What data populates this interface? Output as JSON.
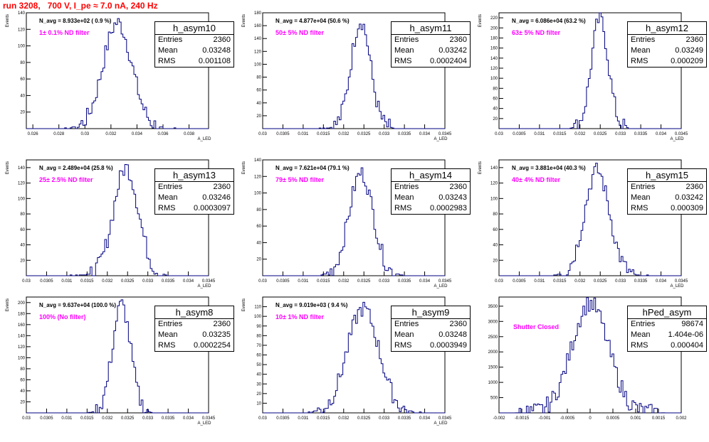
{
  "header": {
    "run_title": "run 3208,   700 V, I_pe ≈ 7.0 nA, 240 Hz"
  },
  "colors": {
    "line": "#000080",
    "title": "#ff0000",
    "annotation": "#ff00ff"
  },
  "chart_data": [
    {
      "type": "histogram",
      "name": "h_asym10",
      "entries": "2360",
      "mean": "0.03248",
      "rms": "0.001108",
      "navg": "N_avg = 8.933e+02 ( 0.9 %)",
      "filter": "1± 0.1% ND filter",
      "xlim": [
        0.0255,
        0.0395
      ],
      "ylim": [
        0,
        140
      ],
      "xticks": [
        "0.026",
        "0.028",
        "0.03",
        "0.032",
        "0.034",
        "0.036",
        "0.038"
      ],
      "xtick_values": [
        0.026,
        0.028,
        0.03,
        0.032,
        0.034,
        0.036,
        0.038
      ],
      "yticks": [
        20,
        40,
        60,
        80,
        100,
        120,
        140
      ],
      "xlabel": "A_LED",
      "ylabel": "Events",
      "center": 0.0325,
      "sigma": 0.00111,
      "peak": 128
    },
    {
      "type": "histogram",
      "name": "h_asym11",
      "entries": "2360",
      "mean": "0.03242",
      "rms": "0.0002404",
      "navg": "N_avg = 4.877e+04 (50.6 %)",
      "filter": "50± 5% ND filter",
      "xlim": [
        0.03,
        0.0345
      ],
      "ylim": [
        0,
        180
      ],
      "xticks": [
        "0.03",
        "0.0305",
        "0.031",
        "0.0315",
        "0.032",
        "0.0325",
        "0.033",
        "0.0335",
        "0.034",
        "0.0345"
      ],
      "xtick_values": [
        0.03,
        0.0305,
        0.031,
        0.0315,
        0.032,
        0.0325,
        0.033,
        0.0335,
        0.034,
        0.0345
      ],
      "yticks": [
        20,
        40,
        60,
        80,
        100,
        120,
        140,
        160,
        180
      ],
      "xlabel": "A_LED",
      "ylabel": "Events",
      "center": 0.03242,
      "sigma": 0.00024,
      "peak": 168
    },
    {
      "type": "histogram",
      "name": "h_asym12",
      "entries": "2360",
      "mean": "0.03249",
      "rms": "0.000209",
      "navg": "N_avg = 6.086e+04 (63.2 %)",
      "filter": "63± 5% ND filter",
      "xlim": [
        0.03,
        0.0345
      ],
      "ylim": [
        0,
        230
      ],
      "xticks": [
        "0.03",
        "0.0305",
        "0.031",
        "0.0315",
        "0.032",
        "0.0325",
        "0.033",
        "0.0335",
        "0.034",
        "0.0345"
      ],
      "xtick_values": [
        0.03,
        0.0305,
        0.031,
        0.0315,
        0.032,
        0.0325,
        0.033,
        0.0335,
        0.034,
        0.0345
      ],
      "yticks": [
        20,
        40,
        60,
        80,
        100,
        120,
        140,
        160,
        180,
        200,
        220
      ],
      "xlabel": "A_LED",
      "ylabel": "Events",
      "center": 0.03249,
      "sigma": 0.00021,
      "peak": 218
    },
    {
      "type": "histogram",
      "name": "h_asym13",
      "entries": "2360",
      "mean": "0.03246",
      "rms": "0.0003097",
      "navg": "N_avg = 2.489e+04 (25.8 %)",
      "filter": "25± 2.5% ND filter",
      "xlim": [
        0.03,
        0.0345
      ],
      "ylim": [
        0,
        150
      ],
      "xticks": [
        "0.03",
        "0.0305",
        "0.031",
        "0.0315",
        "0.032",
        "0.0325",
        "0.033",
        "0.0335",
        "0.034",
        "0.0345"
      ],
      "xtick_values": [
        0.03,
        0.0305,
        0.031,
        0.0315,
        0.032,
        0.0325,
        0.033,
        0.0335,
        0.034,
        0.0345
      ],
      "yticks": [
        20,
        40,
        60,
        80,
        100,
        120,
        140
      ],
      "xlabel": "A_LED",
      "ylabel": "Events",
      "center": 0.03246,
      "sigma": 0.00031,
      "peak": 140
    },
    {
      "type": "histogram",
      "name": "h_asym14",
      "entries": "2360",
      "mean": "0.03243",
      "rms": "0.0002983",
      "navg": "N_avg = 7.621e+04 (79.1 %)",
      "filter": "79± 5% ND filter",
      "xlim": [
        0.03,
        0.0345
      ],
      "ylim": [
        0,
        140
      ],
      "xticks": [
        "0.03",
        "0.0305",
        "0.031",
        "0.0315",
        "0.032",
        "0.0325",
        "0.033",
        "0.0335",
        "0.034",
        "0.0345"
      ],
      "xtick_values": [
        0.03,
        0.0305,
        0.031,
        0.0315,
        0.032,
        0.0325,
        0.033,
        0.0335,
        0.034,
        0.0345
      ],
      "yticks": [
        20,
        40,
        60,
        80,
        100,
        120,
        140
      ],
      "xlabel": "A_LED",
      "ylabel": "Events",
      "center": 0.03243,
      "sigma": 0.0003,
      "peak": 124
    },
    {
      "type": "histogram",
      "name": "h_asym15",
      "entries": "2360",
      "mean": "0.03242",
      "rms": "0.000309",
      "navg": "N_avg = 3.881e+04 (40.3 %)",
      "filter": "40± 4% ND filter",
      "xlim": [
        0.03,
        0.0345
      ],
      "ylim": [
        0,
        150
      ],
      "xticks": [
        "0.03",
        "0.0305",
        "0.031",
        "0.0315",
        "0.032",
        "0.0325",
        "0.033",
        "0.0335",
        "0.034",
        "0.0345"
      ],
      "xtick_values": [
        0.03,
        0.0305,
        0.031,
        0.0315,
        0.032,
        0.0325,
        0.033,
        0.0335,
        0.034,
        0.0345
      ],
      "yticks": [
        20,
        40,
        60,
        80,
        100,
        120,
        140
      ],
      "xlabel": "A_LED",
      "ylabel": "Events",
      "center": 0.03242,
      "sigma": 0.00031,
      "peak": 136
    },
    {
      "type": "histogram",
      "name": "h_asym8",
      "entries": "2360",
      "mean": "0.03235",
      "rms": "0.0002254",
      "navg": "N_avg = 9.637e+04 (100.0 %)",
      "filter": "100% (No filter)",
      "xlim": [
        0.03,
        0.0345
      ],
      "ylim": [
        0,
        210
      ],
      "xticks": [
        "0.03",
        "0.0305",
        "0.031",
        "0.0315",
        "0.032",
        "0.0325",
        "0.033",
        "0.0335",
        "0.034",
        "0.0345"
      ],
      "xtick_values": [
        0.03,
        0.0305,
        0.031,
        0.0315,
        0.032,
        0.0325,
        0.033,
        0.0335,
        0.034,
        0.0345
      ],
      "yticks": [
        20,
        40,
        60,
        80,
        100,
        120,
        140,
        160,
        180,
        200
      ],
      "xlabel": "A_LED",
      "ylabel": "Events",
      "center": 0.03235,
      "sigma": 0.000225,
      "peak": 196
    },
    {
      "type": "histogram",
      "name": "h_asym9",
      "entries": "2360",
      "mean": "0.03248",
      "rms": "0.0003949",
      "navg": "N_avg = 9.019e+03 ( 9.4 %)",
      "filter": "10± 1% ND filter",
      "xlim": [
        0.03,
        0.0345
      ],
      "ylim": [
        0,
        120
      ],
      "xticks": [
        "0.03",
        "0.0305",
        "0.031",
        "0.0315",
        "0.032",
        "0.0325",
        "0.033",
        "0.0335",
        "0.034",
        "0.0345"
      ],
      "xtick_values": [
        0.03,
        0.0305,
        0.031,
        0.0315,
        0.032,
        0.0325,
        0.033,
        0.0335,
        0.034,
        0.0345
      ],
      "yticks": [
        10,
        20,
        30,
        40,
        50,
        60,
        70,
        80,
        90,
        100,
        110
      ],
      "xlabel": "A_LED",
      "ylabel": "Events",
      "center": 0.03248,
      "sigma": 0.000395,
      "peak": 108
    },
    {
      "type": "histogram",
      "name": "hPed_asym",
      "entries": "98674",
      "mean": "1.404e-06",
      "rms": "0.000404",
      "navg": "",
      "filter": "Shutter Closed",
      "xlim": [
        -0.002,
        0.002
      ],
      "ylim": [
        0,
        3800
      ],
      "xticks": [
        "-0.002",
        "-0.0015",
        "-0.001",
        "-0.0005",
        "0",
        "0.0005",
        "0.001",
        "0.0015",
        "0.002"
      ],
      "xtick_values": [
        -0.002,
        -0.0015,
        -0.001,
        -0.0005,
        0,
        0.0005,
        0.001,
        0.0015,
        0.002
      ],
      "yticks": [
        500,
        1000,
        1500,
        2000,
        2500,
        3000,
        3500
      ],
      "xlabel": "",
      "ylabel": "",
      "center": 0.0,
      "sigma": 0.000404,
      "peak": 3600
    }
  ]
}
